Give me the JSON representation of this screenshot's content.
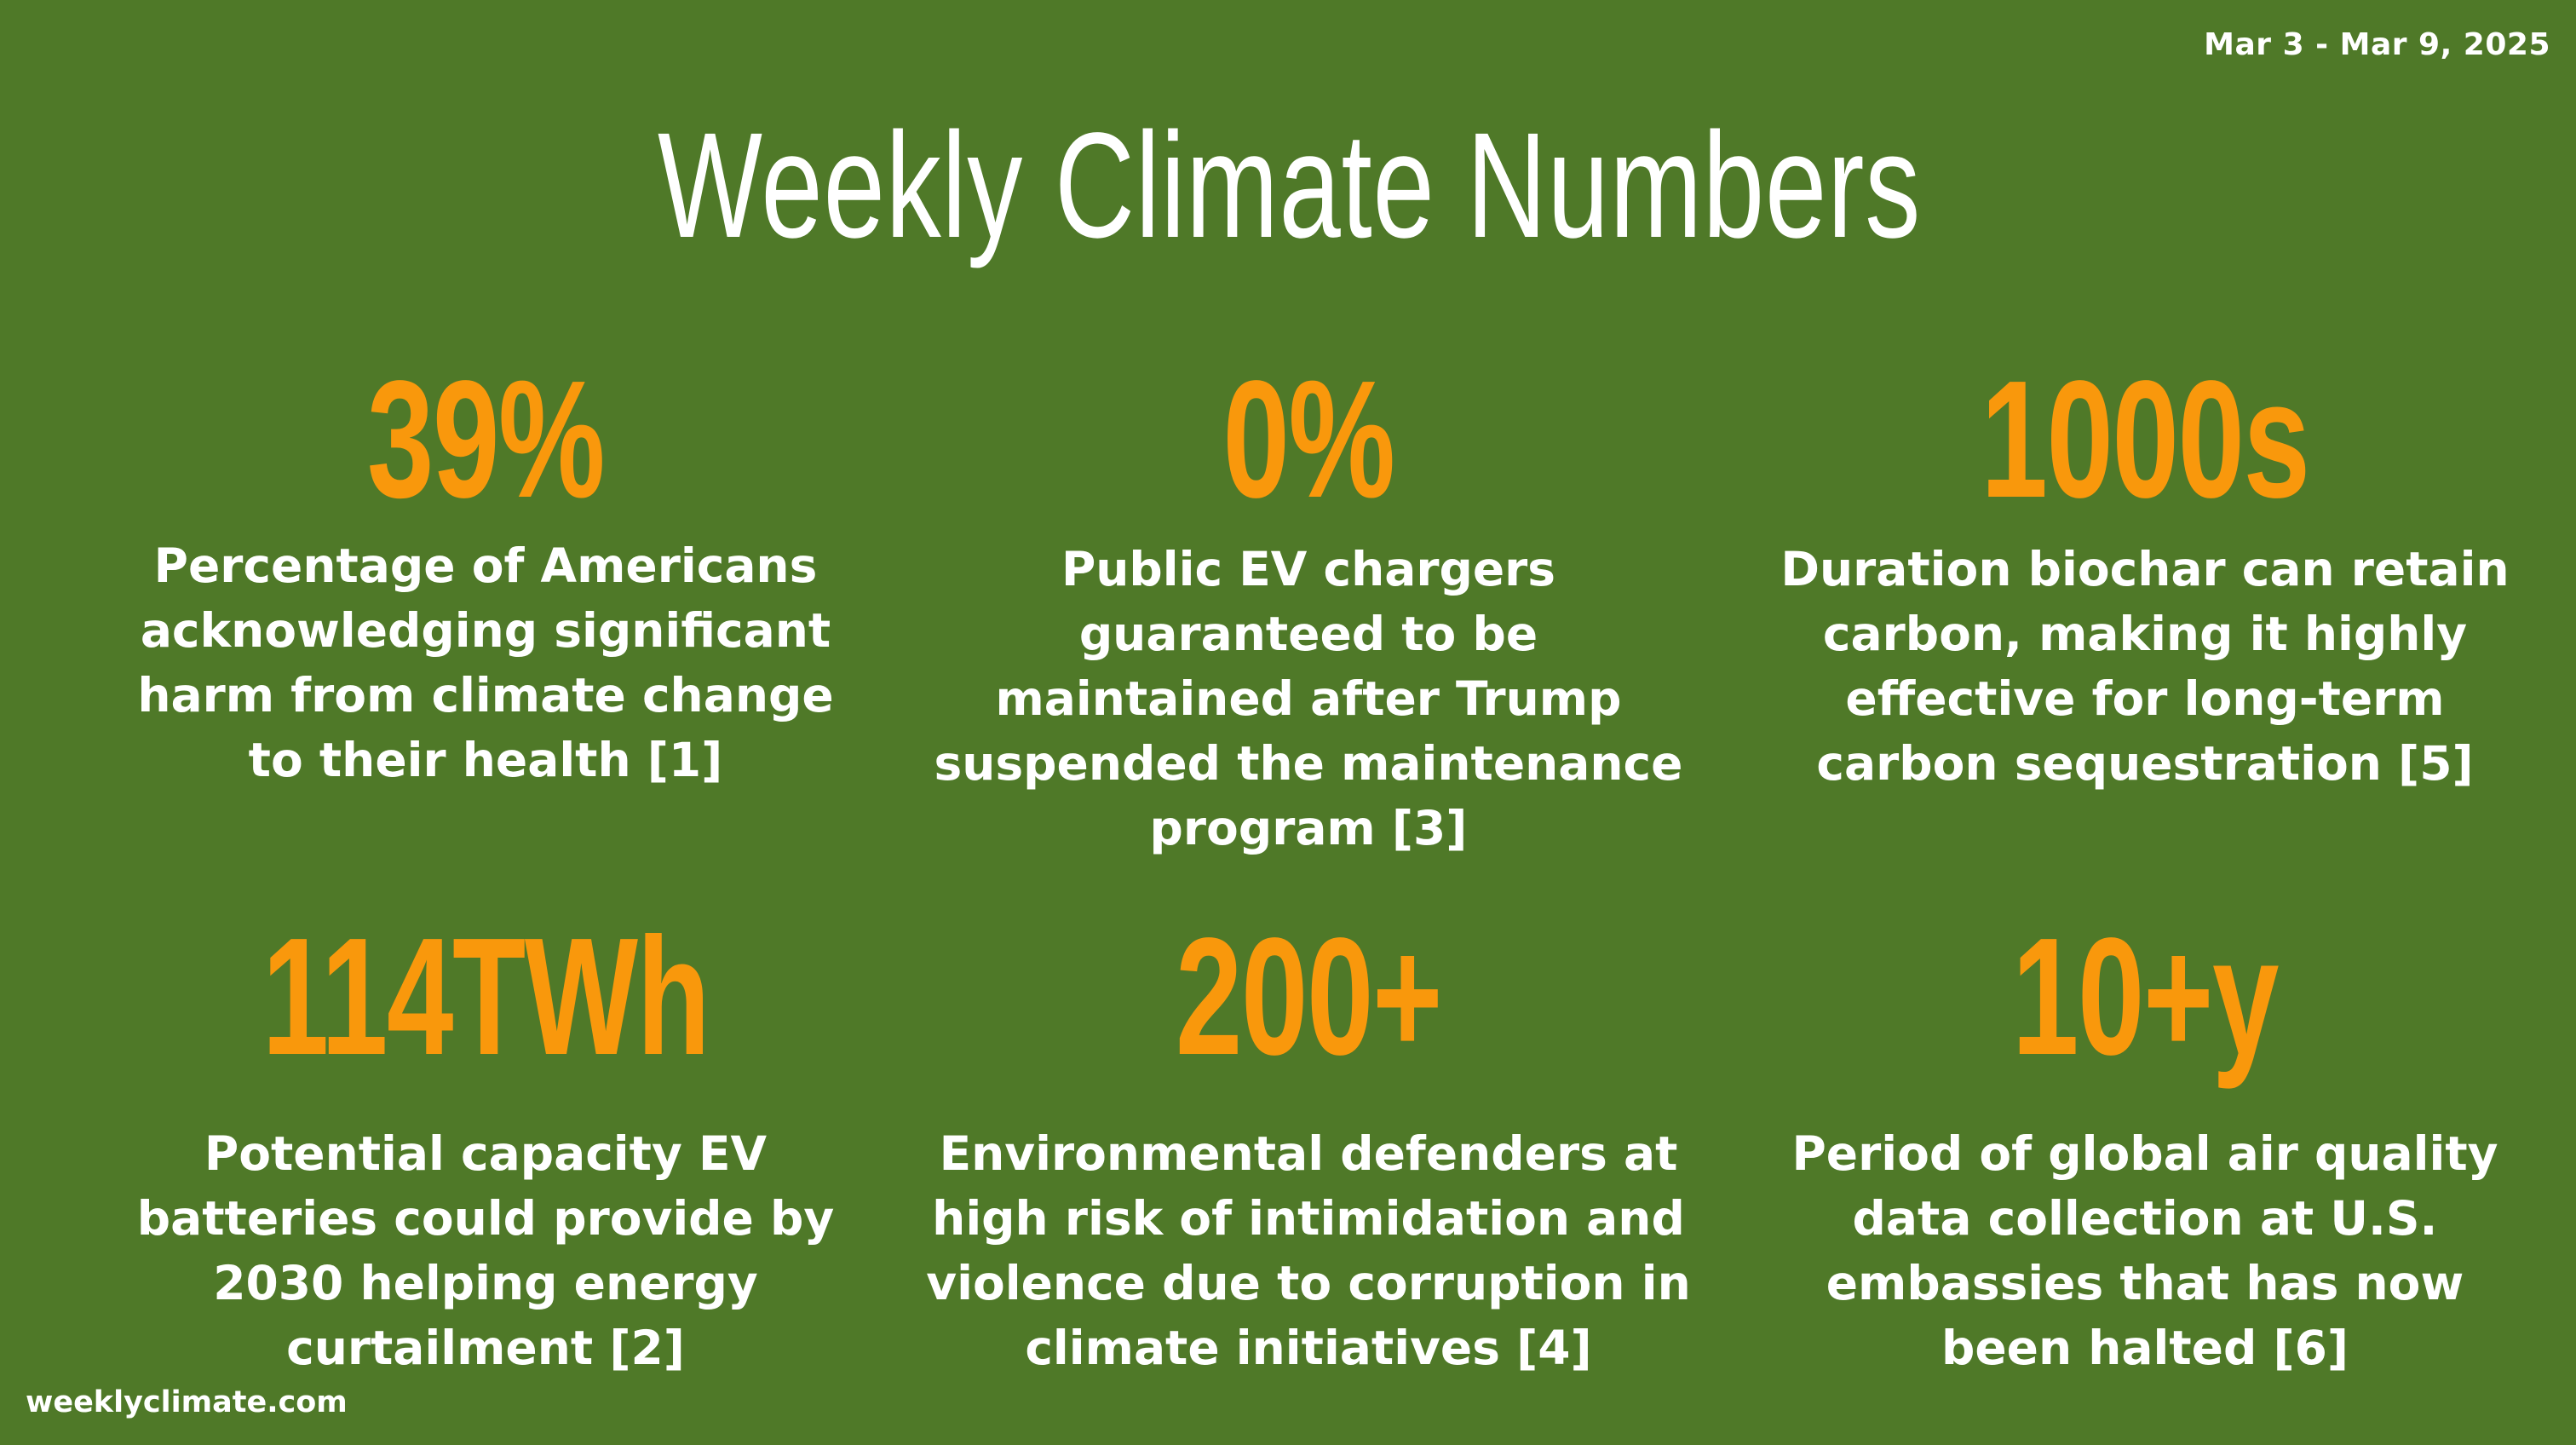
{
  "header": {
    "date_range": "Mar 3 - Mar 9, 2025",
    "title": "Weekly Climate Numbers"
  },
  "stats": [
    {
      "value": "39%",
      "description": "Percentage of Americans acknowledging significant harm from climate change to their health [1]"
    },
    {
      "value": "0%",
      "description": "Public EV chargers guaranteed to be maintained after Trump suspended the maintenance program [3]"
    },
    {
      "value": "1000s",
      "description": "Duration biochar can retain carbon, making it highly effective for long-term carbon sequestration [5]"
    },
    {
      "value": "114TWh",
      "description": "Potential capacity EV batteries could provide by 2030 helping energy curtailment [2]"
    },
    {
      "value": "200+",
      "description": "Environmental defenders at high risk of intimidation and violence due to corruption in climate initiatives [4]"
    },
    {
      "value": "10+y",
      "description": "Period of global air quality data collection at U.S. embassies that has now been halted [6]"
    }
  ],
  "footer": {
    "site": "weeklyclimate.com"
  },
  "colors": {
    "background": "#4f7928",
    "accent": "#f9980c",
    "text": "#ffffff"
  }
}
